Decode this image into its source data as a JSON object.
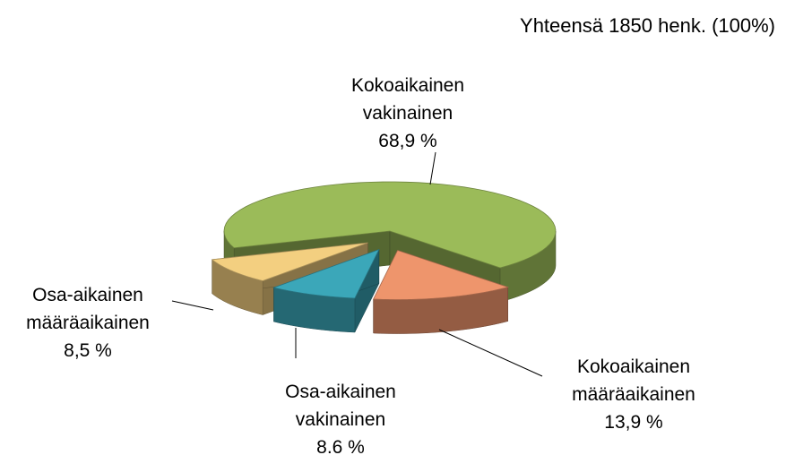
{
  "chart_data": {
    "type": "pie",
    "title": "Yhteensä 1850 henk. (100%)",
    "categories": [
      "Kokoaikainen vakinainen",
      "Kokoaikainen määräaikainen",
      "Osa-aikainen vakinainen",
      "Osa-aikainen määräaikainen"
    ],
    "values": [
      68.9,
      13.9,
      8.6,
      8.5
    ],
    "value_labels": [
      "68,9 %",
      "13,9 %",
      "8.6 %",
      "8,5 %"
    ],
    "colors": [
      "#9bbb59",
      "#ee956c",
      "#3ba7b9",
      "#f3cf80"
    ]
  }
}
